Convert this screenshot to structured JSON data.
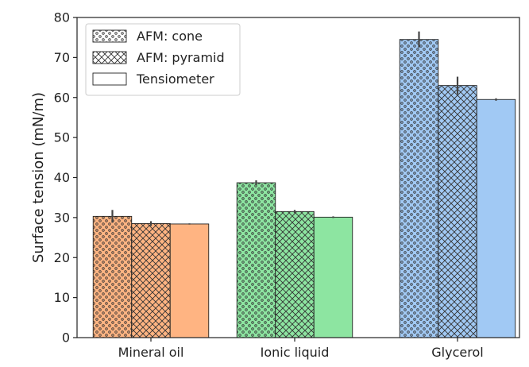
{
  "chart_data": {
    "type": "bar",
    "categories": [
      "Mineral oil",
      "Ionic liquid",
      "Glycerol"
    ],
    "category_colors": [
      "#ffb482",
      "#8de5a1",
      "#a1c9f4"
    ],
    "series": [
      {
        "name": "AFM: cone",
        "pattern": "dots",
        "values": [
          30.3,
          38.7,
          74.5
        ],
        "errors": [
          1.6,
          0.6,
          2.0
        ]
      },
      {
        "name": "AFM: pyramid",
        "pattern": "crosshatch",
        "values": [
          28.5,
          31.5,
          63.0
        ],
        "errors": [
          0.6,
          0.4,
          2.2
        ]
      },
      {
        "name": "Tensiometer",
        "pattern": "none",
        "values": [
          28.4,
          30.1,
          59.5
        ],
        "errors": [
          0.15,
          0.2,
          0.3
        ]
      }
    ],
    "xlabel": "",
    "ylabel": "Surface tension (mN/m)",
    "ylim": [
      0,
      80
    ],
    "yticks": [
      0,
      10,
      20,
      30,
      40,
      50,
      60,
      70,
      80
    ],
    "grid": false,
    "legend_position": "top-left"
  }
}
